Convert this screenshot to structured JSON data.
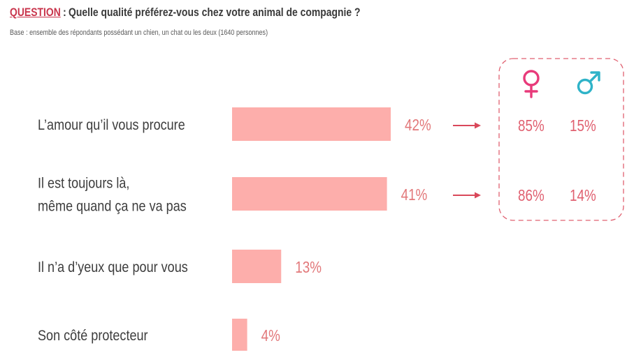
{
  "header": {
    "question_label": "QUESTION",
    "question_colon": ":",
    "question_text": "Quelle qualité préférez-vous chez votre animal de compagnie ?",
    "base_text": "Base : ensemble des répondants possédant un chien, un chat ou les deux (1640 personnes)"
  },
  "colors": {
    "bar": "#fdaeab",
    "value_text": "#e2787a",
    "arrow": "#d9485a",
    "female": "#e83a7a",
    "male": "#2fb3c8",
    "gender_value": "#e06070",
    "box_border": "#e06070",
    "label_text": "#3d3d3d"
  },
  "chart_data": {
    "type": "bar",
    "orientation": "horizontal",
    "categories": [
      [
        "L’amour qu’il vous procure"
      ],
      [
        "Il est toujours là,",
        "même quand ça ne va pas"
      ],
      [
        "Il n’a d’yeux que pour vous"
      ],
      [
        "Son côté protecteur"
      ]
    ],
    "values": [
      42,
      41,
      13,
      4
    ],
    "value_labels": [
      "42%",
      "41%",
      "13%",
      "4%"
    ],
    "xlim": [
      0,
      42
    ],
    "gender_breakdown": {
      "icons": [
        "female-symbol-icon",
        "male-symbol-icon"
      ],
      "rows": [
        {
          "female": "85%",
          "male": "15%"
        },
        {
          "female": "86%",
          "male": "14%"
        }
      ]
    }
  }
}
